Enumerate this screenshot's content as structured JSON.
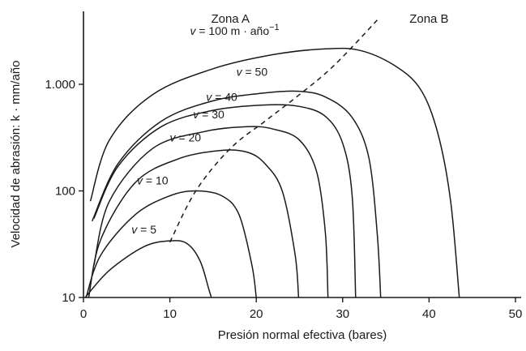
{
  "chart_data": {
    "type": "line",
    "title": "",
    "xlabel": "Presión normal efectiva (bares)",
    "ylabel": "Velocidad de abrasión: k · mm/año",
    "x_scale": "linear",
    "y_scale": "log",
    "xlim": [
      0,
      50
    ],
    "ylim": [
      10,
      4500
    ],
    "x_ticks": [
      0,
      10,
      20,
      30,
      40,
      50
    ],
    "x_tick_labels": [
      "0",
      "10",
      "20",
      "30",
      "40",
      "50"
    ],
    "y_ticks": [
      10,
      100,
      1000
    ],
    "y_tick_labels": [
      "10",
      "100",
      "1.000"
    ],
    "grid": false,
    "zones": [
      {
        "label": "Zona A",
        "x": 17
      },
      {
        "label": "Zona B",
        "x": 40
      }
    ],
    "boundary": {
      "style": "dashed",
      "points": [
        [
          10,
          33
        ],
        [
          13,
          100
        ],
        [
          17,
          250
        ],
        [
          21,
          450
        ],
        [
          25,
          800
        ],
        [
          29,
          1500
        ],
        [
          34,
          4000
        ]
      ]
    },
    "series": [
      {
        "name": "v = 100 m · año−1",
        "label_parts": [
          "v",
          " = 100 m · año",
          "−1"
        ],
        "points": [
          [
            0.8,
            80
          ],
          [
            3,
            300
          ],
          [
            8,
            800
          ],
          [
            15,
            1400
          ],
          [
            22,
            1900
          ],
          [
            28,
            2150
          ],
          [
            32,
            2080
          ],
          [
            36,
            1500
          ],
          [
            39,
            900
          ],
          [
            41,
            350
          ],
          [
            42.5,
            80
          ],
          [
            43.5,
            10
          ]
        ]
      },
      {
        "name": "v = 50",
        "label_parts": [
          "v",
          " = 50"
        ],
        "points": [
          [
            1,
            52
          ],
          [
            4,
            180
          ],
          [
            9,
            450
          ],
          [
            15,
            700
          ],
          [
            21,
            830
          ],
          [
            25,
            860
          ],
          [
            28,
            760
          ],
          [
            31,
            500
          ],
          [
            33,
            210
          ],
          [
            34,
            40
          ],
          [
            34.4,
            10
          ]
        ]
      },
      {
        "name": "v = 40",
        "label_parts": [
          "v",
          " = 40"
        ],
        "points": [
          [
            1.2,
            55
          ],
          [
            4,
            170
          ],
          [
            9,
            400
          ],
          [
            15,
            570
          ],
          [
            21,
            640
          ],
          [
            25,
            620
          ],
          [
            28,
            500
          ],
          [
            30,
            280
          ],
          [
            31.1,
            90
          ],
          [
            31.5,
            10
          ]
        ]
      },
      {
        "name": "v = 30",
        "label_parts": [
          "v",
          " = 30"
        ],
        "points": [
          [
            1.2,
            20
          ],
          [
            3,
            80
          ],
          [
            8,
            250
          ],
          [
            14,
            360
          ],
          [
            19,
            400
          ],
          [
            22,
            380
          ],
          [
            25,
            300
          ],
          [
            27,
            150
          ],
          [
            28,
            40
          ],
          [
            28.3,
            10
          ]
        ]
      },
      {
        "name": "v = 20",
        "label_parts": [
          "v",
          " = 20"
        ],
        "points": [
          [
            0.6,
            10
          ],
          [
            2,
            35
          ],
          [
            6,
            120
          ],
          [
            11,
            200
          ],
          [
            16,
            240
          ],
          [
            19,
            230
          ],
          [
            21,
            180
          ],
          [
            23,
            100
          ],
          [
            24.5,
            25
          ],
          [
            24.9,
            10
          ]
        ]
      },
      {
        "name": "v = 10",
        "label_parts": [
          "v",
          " = 10"
        ],
        "points": [
          [
            0.3,
            10
          ],
          [
            2,
            25
          ],
          [
            6,
            60
          ],
          [
            10,
            90
          ],
          [
            13,
            100
          ],
          [
            16,
            90
          ],
          [
            18,
            60
          ],
          [
            19.5,
            20
          ],
          [
            20,
            10
          ]
        ]
      },
      {
        "name": "v = 5",
        "label_parts": [
          "v",
          " = 5"
        ],
        "points": [
          [
            0.2,
            10
          ],
          [
            3,
            18
          ],
          [
            7,
            30
          ],
          [
            10,
            34
          ],
          [
            12,
            32
          ],
          [
            13.5,
            22
          ],
          [
            14.5,
            12
          ],
          [
            14.8,
            10
          ]
        ]
      }
    ],
    "curve_labels": [
      {
        "series": 0,
        "x": 17.5,
        "y": 2900
      },
      {
        "series": 1,
        "x": 19.5,
        "y": 1200
      },
      {
        "series": 2,
        "x": 16,
        "y": 700
      },
      {
        "series": 3,
        "x": 14.5,
        "y": 480
      },
      {
        "series": 4,
        "x": 11.8,
        "y": 290
      },
      {
        "series": 5,
        "x": 8,
        "y": 115
      },
      {
        "series": 6,
        "x": 7,
        "y": 40
      }
    ]
  }
}
